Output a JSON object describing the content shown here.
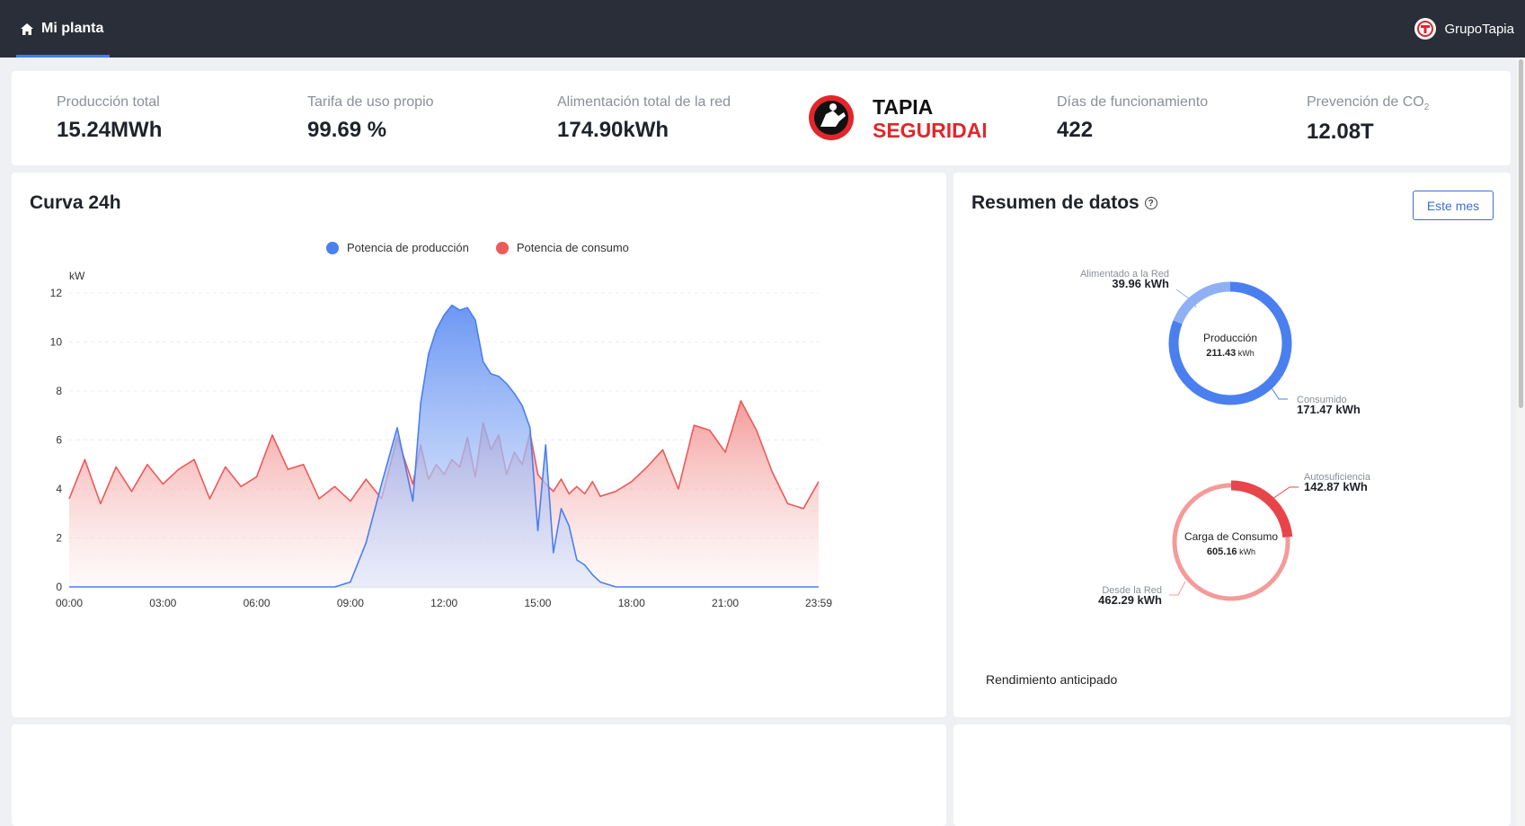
{
  "header": {
    "nav_label": "Mi planta",
    "user_name": "GrupoTapia"
  },
  "stats": [
    {
      "label": "Producción total",
      "value": "15.24MWh"
    },
    {
      "label": "Tarifa de uso propio",
      "value": "99.69 %"
    },
    {
      "label": "Alimentación total de la red",
      "value": "174.90kWh"
    },
    {
      "label": "Días de funcionamiento",
      "value": "422"
    },
    {
      "label_main": "Prevención de CO",
      "label_sub": "2",
      "value": "12.08T"
    }
  ],
  "brand": {
    "line1": "TAPIA",
    "line2": "SEGURIDAD"
  },
  "colors": {
    "topbar": "#2a2e38",
    "accent": "#3c7ff0",
    "production": "#4a7ff0",
    "consumption": "#ec5a5a",
    "brand_red": "#e2262b"
  },
  "curve": {
    "title": "Curva 24h",
    "legend": [
      "Potencia de producción",
      "Potencia de consumo"
    ]
  },
  "chart_data": {
    "type": "area",
    "ylabel": "kW",
    "ylim": [
      0,
      12
    ],
    "yticks": [
      0,
      2,
      4,
      6,
      8,
      10,
      12
    ],
    "xticks": [
      "00:00",
      "03:00",
      "06:00",
      "09:00",
      "12:00",
      "15:00",
      "18:00",
      "21:00",
      "23:59"
    ],
    "x_hours": [
      0,
      0.5,
      1,
      1.5,
      2,
      2.5,
      3,
      3.5,
      4,
      4.5,
      5,
      5.5,
      6,
      6.5,
      7,
      7.5,
      8,
      8.5,
      9,
      9.5,
      10,
      10.5,
      11,
      11.25,
      11.5,
      11.75,
      12,
      12.25,
      12.5,
      12.75,
      13,
      13.25,
      13.5,
      13.75,
      14,
      14.25,
      14.5,
      14.75,
      15,
      15.25,
      15.5,
      15.75,
      16,
      16.25,
      16.5,
      16.75,
      17,
      17.5,
      18,
      18.5,
      19,
      19.5,
      20,
      20.5,
      21,
      21.5,
      22,
      22.5,
      23,
      23.5,
      23.99
    ],
    "series": [
      {
        "name": "Potencia de producción",
        "color": "#4a7ff0",
        "values": [
          0,
          0,
          0,
          0,
          0,
          0,
          0,
          0,
          0,
          0,
          0,
          0,
          0,
          0,
          0,
          0,
          0,
          0,
          0.2,
          1.8,
          4.2,
          6.5,
          3.5,
          7.5,
          9.5,
          10.5,
          11.1,
          11.5,
          11.3,
          11.4,
          10.9,
          9.2,
          8.7,
          8.6,
          8.3,
          7.9,
          7.4,
          6.5,
          2.3,
          5.8,
          1.4,
          3.2,
          2.5,
          1.1,
          0.9,
          0.5,
          0.2,
          0,
          0,
          0,
          0,
          0,
          0,
          0,
          0,
          0,
          0,
          0,
          0,
          0,
          0
        ]
      },
      {
        "name": "Potencia de consumo",
        "color": "#ec5a5a",
        "values": [
          3.6,
          5.2,
          3.4,
          4.9,
          3.9,
          5.0,
          4.2,
          4.8,
          5.2,
          3.6,
          4.9,
          4.1,
          4.5,
          6.2,
          4.8,
          5.0,
          3.6,
          4.1,
          3.5,
          4.4,
          3.6,
          6.1,
          4.2,
          5.8,
          4.4,
          5.0,
          4.6,
          5.2,
          4.9,
          6.1,
          4.5,
          6.7,
          5.6,
          6.2,
          4.6,
          5.5,
          5.0,
          6.3,
          4.6,
          4.2,
          3.9,
          4.4,
          3.8,
          4.1,
          3.8,
          4.3,
          3.7,
          3.9,
          4.3,
          4.9,
          5.6,
          4.0,
          6.6,
          6.4,
          5.5,
          7.6,
          6.4,
          4.7,
          3.4,
          3.2,
          4.3
        ]
      }
    ]
  },
  "summary": {
    "title": "Resumen de datos",
    "help_icon": "?",
    "period_button": "Este mes",
    "production": {
      "center_label": "Producción",
      "center_value": "211.43",
      "unit": "kWh",
      "fed_label": "Alimentado a  la Red",
      "fed_value": "39.96 kWh",
      "fed_share": 0.189,
      "consumed_label": "Consumido",
      "consumed_value": "171.47 kWh"
    },
    "consumption": {
      "center_label": "Carga de Consumo",
      "center_value": "605.16",
      "unit": "kWh",
      "self_label": "Autosuficiencia",
      "self_value": "142.87 kWh",
      "self_share": 0.236,
      "grid_label": "Desde la Red",
      "grid_value": "462.29 kWh"
    },
    "performance_label": "Rendimiento anticipado"
  }
}
